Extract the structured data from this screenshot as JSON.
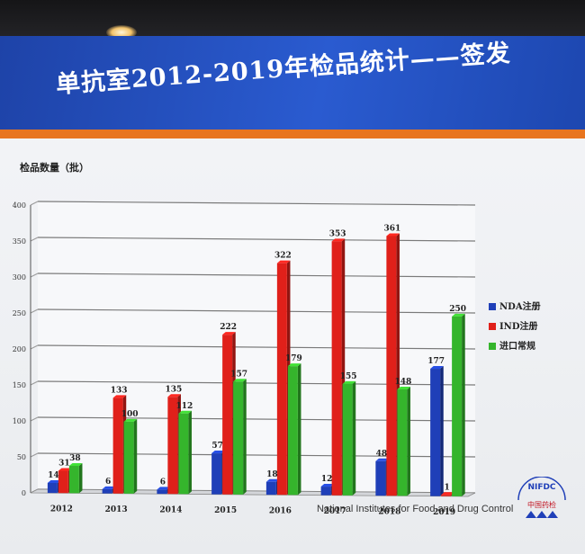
{
  "slide": {
    "title": "单抗室2012-2019年检品统计——签发",
    "footer": "National Institutes for Food and Drug Control",
    "logo": {
      "text": "NIFDC",
      "subtext": "中国药检"
    }
  },
  "colors": {
    "title_band": "#2553c4",
    "title_stripe": "#e8751f",
    "nda": "#1f3fb8",
    "ind": "#e0201a",
    "import": "#35b52c"
  },
  "chart_data": {
    "type": "bar",
    "ylabel": "检品数量（批）",
    "ylim": [
      0,
      400
    ],
    "yticks": [
      0,
      50,
      100,
      150,
      200,
      250,
      300,
      350,
      400
    ],
    "grid": true,
    "legend_position": "right",
    "categories": [
      "2012",
      "2013",
      "2014",
      "2015",
      "2016",
      "2017",
      "2018",
      "2019"
    ],
    "series": [
      {
        "name": "NDA注册",
        "values": [
          14,
          6,
          6,
          57,
          18,
          12,
          48,
          177
        ]
      },
      {
        "name": "IND注册",
        "values": [
          31,
          133,
          135,
          222,
          322,
          353,
          361,
          1
        ]
      },
      {
        "name": "进口常规",
        "values": [
          38,
          100,
          112,
          157,
          179,
          155,
          148,
          250
        ]
      }
    ]
  }
}
